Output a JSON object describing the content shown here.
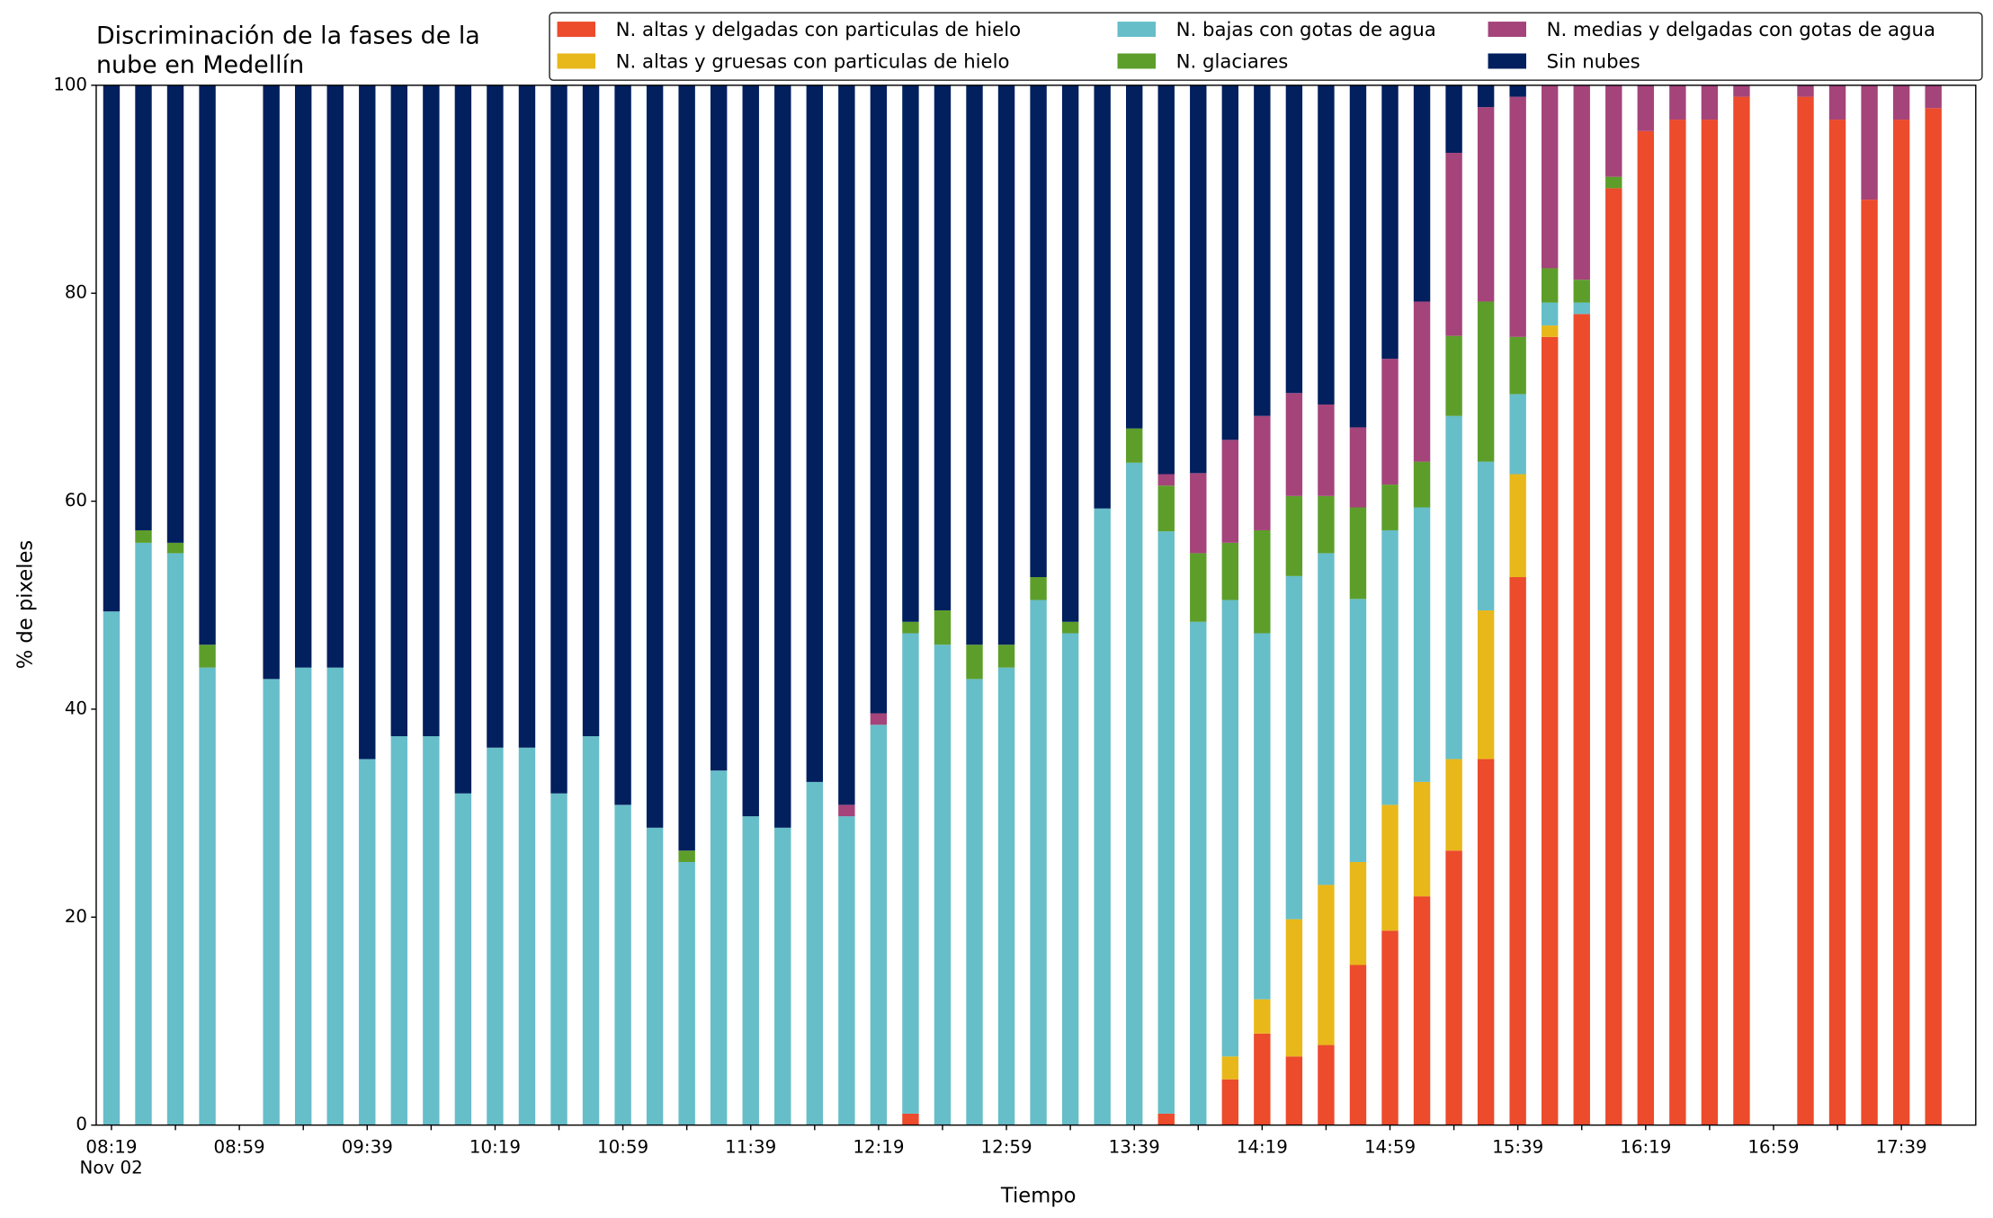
{
  "chart_data": {
    "type": "stacked_bar",
    "title": [
      "Discriminación de la fases de la",
      "nube en Medellín"
    ],
    "xlabel": "Tiempo",
    "ylabel": "% de pixeles",
    "x_date_label": "Nov 02",
    "categories": [
      "08:19",
      null,
      null,
      null,
      "08:59",
      null,
      null,
      null,
      "09:39",
      null,
      null,
      null,
      "10:19",
      null,
      null,
      null,
      "10:59",
      null,
      null,
      null,
      "11:39",
      null,
      null,
      null,
      "12:19",
      null,
      null,
      null,
      "12:59",
      null,
      null,
      null,
      "13:39",
      null,
      null,
      null,
      "14:19",
      null,
      null,
      null,
      "14:59",
      null,
      null,
      null,
      "15:39",
      null,
      null,
      null,
      "16:19",
      null,
      null,
      null,
      "16:59",
      null,
      null,
      null,
      "17:39",
      null
    ],
    "ylim": [
      0,
      100
    ],
    "yticks": [
      0,
      20,
      40,
      60,
      80,
      100
    ],
    "grid": false,
    "legend": "upper right",
    "series": [
      {
        "name": "N. altas y delgadas con particulas de hielo",
        "color": "#ec4b2c",
        "values": [
          0,
          0,
          0,
          0,
          null,
          0,
          0,
          0,
          0,
          0,
          0,
          0,
          0,
          0,
          0,
          0,
          0,
          0,
          0,
          0,
          0,
          0,
          0,
          0,
          0,
          1.1,
          0,
          0,
          0,
          0,
          0,
          0,
          0,
          1.1,
          0,
          4.4,
          8.8,
          6.6,
          7.7,
          15.4,
          18.7,
          22,
          26.4,
          35.2,
          52.7,
          75.8,
          78,
          90.1,
          95.6,
          96.7,
          96.7,
          98.9,
          null,
          98.9,
          96.7,
          89,
          96.7,
          97.8
        ]
      },
      {
        "name": "N. altas y gruesas con particulas de hielo",
        "color": "#e8b81a",
        "values": [
          0,
          0,
          0,
          0,
          null,
          0,
          0,
          0,
          0,
          0,
          0,
          0,
          0,
          0,
          0,
          0,
          0,
          0,
          0,
          0,
          0,
          0,
          0,
          0,
          0,
          0,
          0,
          0,
          0,
          0,
          0,
          0,
          0,
          0,
          0,
          2.2,
          3.3,
          13.2,
          15.4,
          9.9,
          12.1,
          11,
          8.8,
          14.3,
          9.9,
          1.1,
          0,
          0,
          0,
          0,
          0,
          0,
          null,
          0,
          0,
          0,
          0,
          0
        ]
      },
      {
        "name": "N. bajas con gotas de agua",
        "color": "#66bec9",
        "values": [
          49.4,
          56,
          55,
          44,
          null,
          42.9,
          44,
          44,
          35.2,
          37.4,
          37.4,
          31.9,
          36.3,
          36.3,
          31.9,
          37.4,
          30.8,
          28.6,
          25.3,
          34.1,
          29.7,
          28.6,
          33,
          29.7,
          38.5,
          46.2,
          46.2,
          42.9,
          44,
          50.5,
          47.3,
          59.3,
          63.7,
          56,
          48.4,
          43.9,
          35.2,
          33,
          31.9,
          25.3,
          26.4,
          26.4,
          33,
          14.3,
          7.7,
          2.2,
          1.1,
          0,
          0,
          0,
          0,
          0,
          null,
          0,
          0,
          0,
          0,
          0
        ]
      },
      {
        "name": "N. glaciares",
        "color": "#5d9e2b",
        "values": [
          0,
          1.2,
          1,
          2.2,
          null,
          0,
          0,
          0,
          0,
          0,
          0,
          0,
          0,
          0,
          0,
          0,
          0,
          0,
          1.1,
          0,
          0,
          0,
          0,
          0,
          0,
          1.1,
          3.3,
          3.3,
          2.2,
          2.2,
          1.1,
          0,
          3.3,
          4.4,
          6.6,
          5.5,
          9.9,
          7.7,
          5.5,
          8.8,
          4.4,
          4.4,
          7.7,
          15.4,
          5.5,
          3.3,
          2.2,
          1.1,
          0,
          0,
          0,
          0,
          null,
          0,
          0,
          0,
          0,
          0
        ]
      },
      {
        "name": "N. medias y delgadas con gotas de agua",
        "color": "#a4447a",
        "values": [
          0,
          0,
          0,
          0,
          null,
          0,
          0,
          0,
          0,
          0,
          0,
          0,
          0,
          0,
          0,
          0,
          0,
          0,
          0,
          0,
          0,
          0,
          0,
          1.1,
          1.1,
          0,
          0,
          0,
          0,
          0,
          0,
          0,
          0,
          1.1,
          7.7,
          9.9,
          11,
          9.9,
          8.8,
          7.7,
          12.1,
          15.4,
          17.6,
          18.7,
          23.1,
          17.6,
          18.7,
          8.8,
          4.4,
          3.3,
          3.3,
          1.1,
          null,
          1.1,
          3.3,
          11,
          3.3,
          2.2
        ]
      },
      {
        "name": "Sin nubes",
        "color": "#021f5e",
        "values": [
          50.6,
          42.8,
          44,
          53.8,
          null,
          57.1,
          56,
          56,
          64.8,
          62.6,
          62.6,
          68.1,
          63.7,
          63.7,
          68.1,
          62.6,
          69.2,
          71.4,
          73.6,
          65.9,
          70.3,
          71.4,
          67,
          69.2,
          60.4,
          51.6,
          50.5,
          53.8,
          53.8,
          47.3,
          51.6,
          40.7,
          33,
          37.4,
          37.3,
          34.1,
          31.8,
          29.6,
          30.7,
          32.9,
          26.3,
          20.8,
          6.5,
          2.1,
          1.1,
          0,
          0,
          0,
          0,
          0,
          0,
          0,
          null,
          0,
          0,
          0,
          0,
          0
        ]
      }
    ]
  }
}
